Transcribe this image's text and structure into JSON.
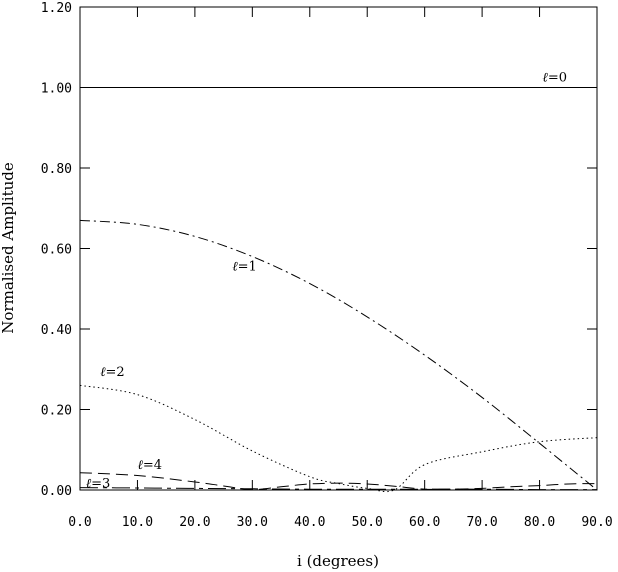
{
  "chart_data": {
    "type": "line",
    "xlabel": "i (degrees)",
    "ylabel": "Normalised Amplitude",
    "xlim": [
      0,
      90
    ],
    "ylim": [
      0,
      1.2
    ],
    "x_ticks": [
      "0.0",
      "10.0",
      "20.0",
      "30.0",
      "40.0",
      "50.0",
      "60.0",
      "70.0",
      "80.0",
      "90.0"
    ],
    "y_ticks": [
      "0.00",
      "0.20",
      "0.40",
      "0.60",
      "0.80",
      "1.00",
      "1.20"
    ],
    "grid": false,
    "series": [
      {
        "name": "ℓ=0",
        "label_text": "=0",
        "style": "solid",
        "x": [
          0,
          10,
          20,
          30,
          40,
          50,
          60,
          70,
          80,
          90
        ],
        "y": [
          1.0,
          1.0,
          1.0,
          1.0,
          1.0,
          1.0,
          1.0,
          1.0,
          1.0,
          1.0
        ]
      },
      {
        "name": "ℓ=1",
        "label_text": "=1",
        "style": "dashdot",
        "x": [
          0,
          10,
          20,
          30,
          40,
          50,
          60,
          70,
          80,
          90
        ],
        "y": [
          0.67,
          0.66,
          0.63,
          0.58,
          0.513,
          0.43,
          0.335,
          0.23,
          0.116,
          0.0
        ]
      },
      {
        "name": "ℓ=2",
        "label_text": "=2",
        "style": "dotted",
        "x": [
          0,
          10,
          20,
          30,
          40,
          45,
          50,
          54.7,
          60,
          70,
          80,
          90
        ],
        "y": [
          0.26,
          0.237,
          0.175,
          0.097,
          0.033,
          0.016,
          0.004,
          0.0,
          0.063,
          0.095,
          0.12,
          0.13
        ]
      },
      {
        "name": "ℓ=3",
        "label_text": "=3",
        "style": "longdash-short",
        "x": [
          0,
          10,
          20,
          30,
          40,
          50,
          60,
          70,
          80,
          90
        ],
        "y": [
          0.006,
          0.005,
          0.004,
          0.003,
          0.002,
          0.002,
          0.002,
          0.002,
          0.001,
          0.001
        ]
      },
      {
        "name": "ℓ=4",
        "label_text": "=4",
        "style": "dashed",
        "x": [
          0,
          10,
          20,
          25,
          30,
          35,
          40,
          45,
          50,
          55,
          60,
          65,
          70,
          75,
          80,
          85,
          90
        ],
        "y": [
          0.043,
          0.036,
          0.02,
          0.01,
          0.001,
          0.008,
          0.015,
          0.017,
          0.015,
          0.009,
          0.002,
          0.002,
          0.004,
          0.008,
          0.011,
          0.015,
          0.016
        ]
      }
    ]
  }
}
